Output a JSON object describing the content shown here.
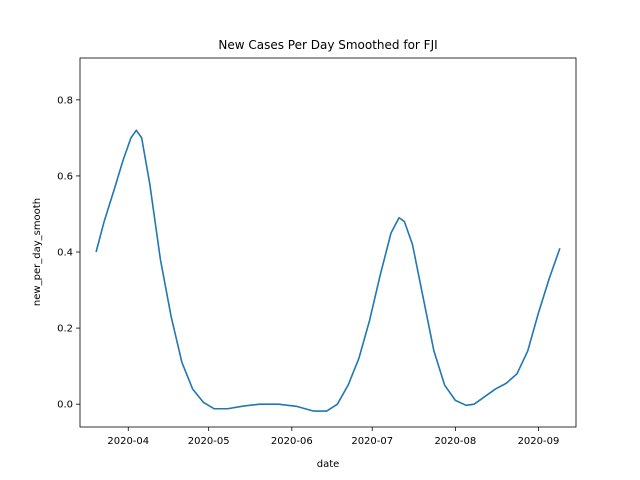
{
  "chart_data": {
    "type": "line",
    "title": "New Cases Per Day Smoothed for FJI",
    "xlabel": "date",
    "ylabel": "new_per_day_smooth",
    "x_type": "date",
    "xlim": [
      "2020-03-14",
      "2020-09-15"
    ],
    "ylim": [
      -0.06,
      0.91
    ],
    "x_ticks": [
      {
        "value": "2020-04-01",
        "label": "2020-04"
      },
      {
        "value": "2020-05-01",
        "label": "2020-05"
      },
      {
        "value": "2020-06-01",
        "label": "2020-06"
      },
      {
        "value": "2020-07-01",
        "label": "2020-07"
      },
      {
        "value": "2020-08-01",
        "label": "2020-08"
      },
      {
        "value": "2020-09-01",
        "label": "2020-09"
      }
    ],
    "y_ticks": [
      {
        "value": 0.0,
        "label": "0.0"
      },
      {
        "value": 0.2,
        "label": "0.2"
      },
      {
        "value": 0.4,
        "label": "0.4"
      },
      {
        "value": 0.6,
        "label": "0.6"
      },
      {
        "value": 0.8,
        "label": "0.8"
      }
    ],
    "grid": false,
    "series": [
      {
        "color": "#1f77b4",
        "points": [
          {
            "x": "2020-03-20",
            "y": 0.4
          },
          {
            "x": "2020-03-23",
            "y": 0.48
          },
          {
            "x": "2020-03-27",
            "y": 0.57
          },
          {
            "x": "2020-03-30",
            "y": 0.64
          },
          {
            "x": "2020-04-02",
            "y": 0.7
          },
          {
            "x": "2020-04-04",
            "y": 0.72
          },
          {
            "x": "2020-04-06",
            "y": 0.7
          },
          {
            "x": "2020-04-09",
            "y": 0.58
          },
          {
            "x": "2020-04-13",
            "y": 0.38
          },
          {
            "x": "2020-04-17",
            "y": 0.23
          },
          {
            "x": "2020-04-21",
            "y": 0.11
          },
          {
            "x": "2020-04-25",
            "y": 0.04
          },
          {
            "x": "2020-04-29",
            "y": 0.005
          },
          {
            "x": "2020-05-03",
            "y": -0.012
          },
          {
            "x": "2020-05-08",
            "y": -0.012
          },
          {
            "x": "2020-05-14",
            "y": -0.005
          },
          {
            "x": "2020-05-20",
            "y": 0.0
          },
          {
            "x": "2020-05-27",
            "y": 0.0
          },
          {
            "x": "2020-06-03",
            "y": -0.006
          },
          {
            "x": "2020-06-09",
            "y": -0.018
          },
          {
            "x": "2020-06-14",
            "y": -0.018
          },
          {
            "x": "2020-06-18",
            "y": 0.0
          },
          {
            "x": "2020-06-22",
            "y": 0.05
          },
          {
            "x": "2020-06-26",
            "y": 0.12
          },
          {
            "x": "2020-06-30",
            "y": 0.22
          },
          {
            "x": "2020-07-04",
            "y": 0.34
          },
          {
            "x": "2020-07-08",
            "y": 0.45
          },
          {
            "x": "2020-07-11",
            "y": 0.49
          },
          {
            "x": "2020-07-13",
            "y": 0.48
          },
          {
            "x": "2020-07-16",
            "y": 0.42
          },
          {
            "x": "2020-07-20",
            "y": 0.28
          },
          {
            "x": "2020-07-24",
            "y": 0.14
          },
          {
            "x": "2020-07-28",
            "y": 0.05
          },
          {
            "x": "2020-08-01",
            "y": 0.01
          },
          {
            "x": "2020-08-05",
            "y": -0.003
          },
          {
            "x": "2020-08-08",
            "y": 0.0
          },
          {
            "x": "2020-08-12",
            "y": 0.02
          },
          {
            "x": "2020-08-16",
            "y": 0.04
          },
          {
            "x": "2020-08-20",
            "y": 0.055
          },
          {
            "x": "2020-08-24",
            "y": 0.08
          },
          {
            "x": "2020-08-28",
            "y": 0.14
          },
          {
            "x": "2020-09-01",
            "y": 0.24
          },
          {
            "x": "2020-09-05",
            "y": 0.33
          },
          {
            "x": "2020-09-09",
            "y": 0.41
          }
        ]
      }
    ]
  }
}
